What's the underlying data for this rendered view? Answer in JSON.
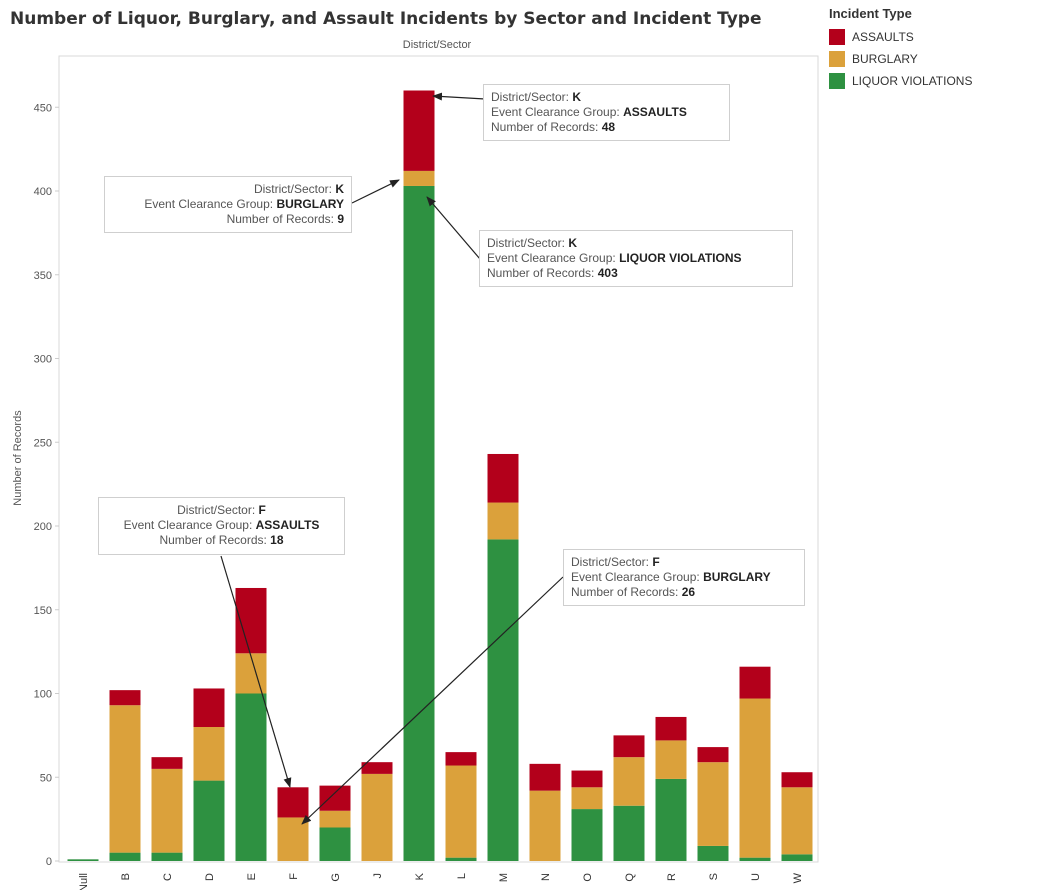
{
  "chart_data": {
    "type": "bar",
    "stacked": true,
    "title": "Number of Liquor, Burglary, and Assault Incidents by Sector and Incident Type",
    "column_header": "District/Sector",
    "ylabel": "Number of Records",
    "ylim": [
      0,
      480
    ],
    "yticks": [
      0,
      50,
      100,
      150,
      200,
      250,
      300,
      350,
      400,
      450
    ],
    "grid": false,
    "legend_position": "top-right",
    "legend_title": "Incident Type",
    "categories": [
      "Null",
      "B",
      "C",
      "D",
      "E",
      "F",
      "G",
      "J",
      "K",
      "L",
      "M",
      "N",
      "O",
      "Q",
      "R",
      "S",
      "U",
      "W"
    ],
    "series": [
      {
        "name": "LIQUOR VIOLATIONS",
        "color": "#2e9141",
        "values": [
          1,
          5,
          5,
          48,
          100,
          0,
          20,
          0,
          403,
          2,
          192,
          0,
          31,
          33,
          49,
          9,
          2,
          4
        ]
      },
      {
        "name": "BURGLARY",
        "color": "#dba13b",
        "values": [
          0,
          88,
          50,
          32,
          24,
          26,
          10,
          52,
          9,
          55,
          22,
          42,
          13,
          29,
          23,
          50,
          95,
          40
        ]
      },
      {
        "name": "ASSAULTS",
        "color": "#b3001b",
        "values": [
          0,
          9,
          7,
          23,
          39,
          18,
          15,
          7,
          48,
          8,
          29,
          16,
          10,
          13,
          14,
          9,
          19,
          9
        ]
      }
    ],
    "annotations": [
      {
        "label_sector": "District/Sector: ",
        "sector": "K",
        "label_group": "Event Clearance Group: ",
        "group": "ASSAULTS",
        "label_records": "Number of Records: ",
        "records": "48"
      },
      {
        "label_sector": "District/Sector: ",
        "sector": "K",
        "label_group": "Event Clearance Group: ",
        "group": "BURGLARY",
        "label_records": "Number of Records: ",
        "records": "9"
      },
      {
        "label_sector": "District/Sector: ",
        "sector": "K",
        "label_group": "Event Clearance Group: ",
        "group": "LIQUOR VIOLATIONS",
        "label_records": "Number of Records: ",
        "records": "403"
      },
      {
        "label_sector": "District/Sector: ",
        "sector": "F",
        "label_group": "Event Clearance Group: ",
        "group": "ASSAULTS",
        "label_records": "Number of Records: ",
        "records": "18"
      },
      {
        "label_sector": "District/Sector: ",
        "sector": "F",
        "label_group": "Event Clearance Group: ",
        "group": "BURGLARY",
        "label_records": "Number of Records: ",
        "records": "26"
      }
    ]
  }
}
